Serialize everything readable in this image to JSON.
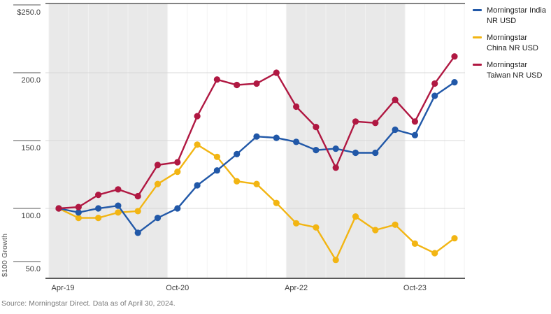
{
  "source_note": "Source: Morningstar Direct.  Data as of April 30, 2024.",
  "chart_data": {
    "type": "line",
    "title": "",
    "xlabel": "",
    "ylabel": "$100 Growth",
    "ylim": [
      50,
      250
    ],
    "grid": "horizontal-light",
    "legend_position": "right",
    "y_ticks": [
      {
        "label": "$250.0",
        "value": 250
      },
      {
        "label": "200.0",
        "value": 200
      },
      {
        "label": "150.0",
        "value": 150
      },
      {
        "label": "100.0",
        "value": 100
      },
      {
        "label": "50.0",
        "value": 50
      }
    ],
    "x_tick_labels": [
      "Apr-19",
      "Oct-20",
      "Apr-22",
      "Oct-23"
    ],
    "x_tick_indices": [
      0,
      6,
      12,
      18
    ],
    "shaded_bands_index_ranges": [
      [
        -0.5,
        5.5
      ],
      [
        11.5,
        17.5
      ]
    ],
    "band_color": "#e9e9e9",
    "categories": [
      "Apr-19",
      "Jul-19",
      "Oct-19",
      "Jan-20",
      "Apr-20",
      "Jul-20",
      "Oct-20",
      "Jan-21",
      "Apr-21",
      "Jul-21",
      "Oct-21",
      "Jan-22",
      "Apr-22",
      "Jul-22",
      "Oct-22",
      "Jan-23",
      "Apr-23",
      "Jul-23",
      "Oct-23",
      "Jan-24",
      "Apr-24"
    ],
    "series": [
      {
        "key": "india",
        "name": "Morningstar India NR USD",
        "color": "#2158a8",
        "values": [
          100,
          97,
          100,
          102,
          82,
          93,
          100,
          117,
          128,
          140,
          153,
          152,
          149,
          143,
          144,
          141,
          141,
          158,
          154,
          183,
          193
        ]
      },
      {
        "key": "china",
        "name": "Morningstar China NR USD",
        "color": "#f2b513",
        "values": [
          100,
          93,
          93,
          97,
          98,
          118,
          127,
          147,
          138,
          120,
          118,
          104,
          89,
          86,
          62,
          94,
          84,
          88,
          74,
          67,
          78
        ]
      },
      {
        "key": "taiwan",
        "name": "Morningstar Taiwan NR USD",
        "color": "#b01842",
        "values": [
          100,
          101,
          110,
          114,
          109,
          132,
          134,
          168,
          195,
          191,
          192,
          200,
          175,
          160,
          130,
          164,
          163,
          180,
          164,
          192,
          212
        ]
      }
    ]
  }
}
